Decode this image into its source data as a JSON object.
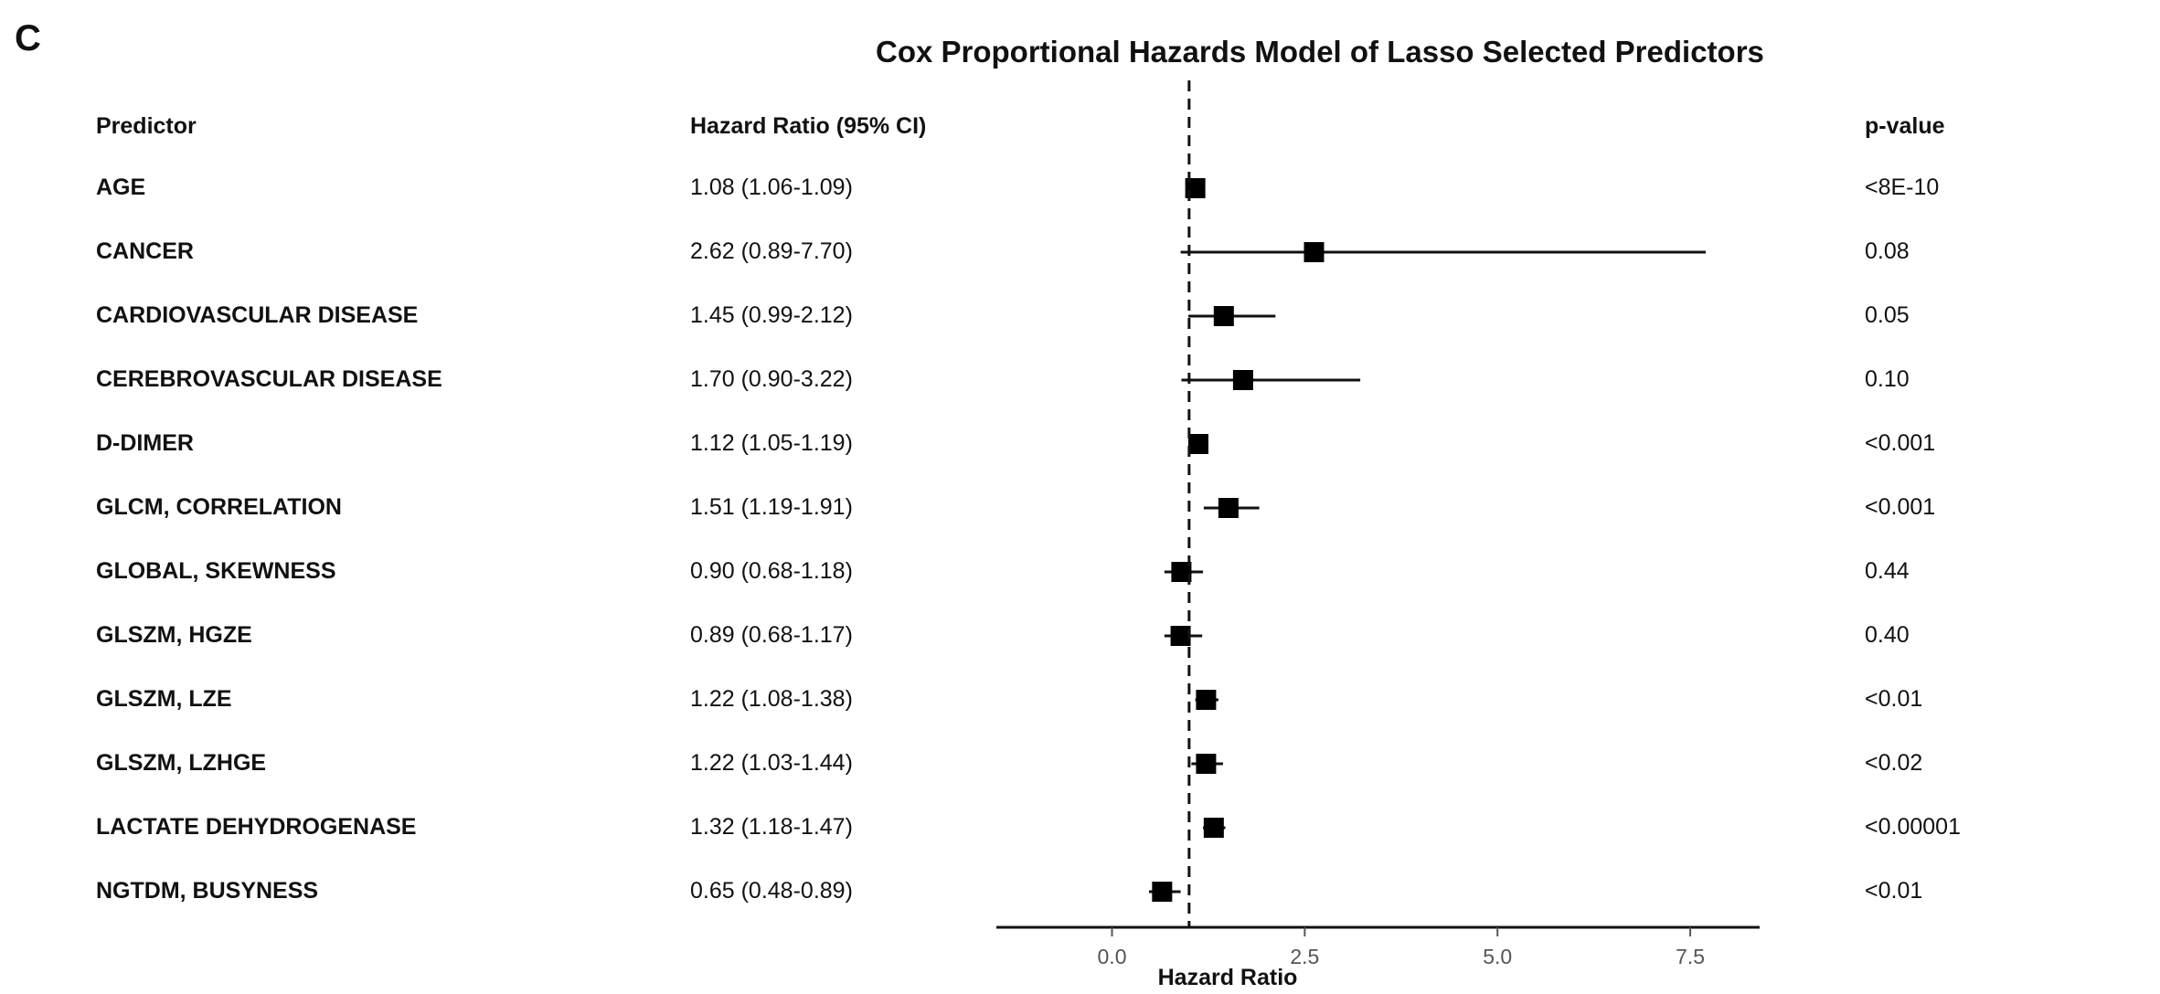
{
  "panel_label": "C",
  "chart_data": {
    "type": "forest",
    "title": "Cox Proportional Hazards Model of Lasso Selected Predictors",
    "columns": {
      "predictor": "Predictor",
      "hazard_ratio": "Hazard Ratio (95% CI)",
      "p_value": "p-value"
    },
    "xlabel": "Hazard Ratio",
    "xlim": [
      -1.5,
      8.4
    ],
    "x_ticks": [
      0.0,
      2.5,
      5.0,
      7.5
    ],
    "x_tick_labels": [
      "0.0",
      "2.5",
      "5.0",
      "7.5"
    ],
    "reference_line": 1.0,
    "rows": [
      {
        "predictor": "AGE",
        "hr": 1.08,
        "lower": 1.06,
        "upper": 1.09,
        "hr_label": "1.08 (1.06-1.09)",
        "p": "<8E-10"
      },
      {
        "predictor": "CANCER",
        "hr": 2.62,
        "lower": 0.89,
        "upper": 7.7,
        "hr_label": "2.62 (0.89-7.70)",
        "p": "0.08"
      },
      {
        "predictor": "CARDIOVASCULAR DISEASE",
        "hr": 1.45,
        "lower": 0.99,
        "upper": 2.12,
        "hr_label": "1.45 (0.99-2.12)",
        "p": "0.05"
      },
      {
        "predictor": "CEREBROVASCULAR DISEASE",
        "hr": 1.7,
        "lower": 0.9,
        "upper": 3.22,
        "hr_label": "1.70 (0.90-3.22)",
        "p": "0.10"
      },
      {
        "predictor": "D-DIMER",
        "hr": 1.12,
        "lower": 1.05,
        "upper": 1.19,
        "hr_label": "1.12 (1.05-1.19)",
        "p": "<0.001"
      },
      {
        "predictor": "GLCM, CORRELATION",
        "hr": 1.51,
        "lower": 1.19,
        "upper": 1.91,
        "hr_label": "1.51 (1.19-1.91)",
        "p": "<0.001"
      },
      {
        "predictor": "GLOBAL, SKEWNESS",
        "hr": 0.9,
        "lower": 0.68,
        "upper": 1.18,
        "hr_label": "0.90 (0.68-1.18)",
        "p": "0.44"
      },
      {
        "predictor": "GLSZM, HGZE",
        "hr": 0.89,
        "lower": 0.68,
        "upper": 1.17,
        "hr_label": "0.89 (0.68-1.17)",
        "p": "0.40"
      },
      {
        "predictor": "GLSZM, LZE",
        "hr": 1.22,
        "lower": 1.08,
        "upper": 1.38,
        "hr_label": "1.22 (1.08-1.38)",
        "p": "<0.01"
      },
      {
        "predictor": "GLSZM, LZHGE",
        "hr": 1.22,
        "lower": 1.03,
        "upper": 1.44,
        "hr_label": "1.22 (1.03-1.44)",
        "p": "<0.02"
      },
      {
        "predictor": "LACTATE DEHYDROGENASE",
        "hr": 1.32,
        "lower": 1.18,
        "upper": 1.47,
        "hr_label": "1.32 (1.18-1.47)",
        "p": "<0.00001"
      },
      {
        "predictor": "NGTDM, BUSYNESS",
        "hr": 0.65,
        "lower": 0.48,
        "upper": 0.89,
        "hr_label": "0.65 (0.48-0.89)",
        "p": "<0.01"
      }
    ]
  }
}
